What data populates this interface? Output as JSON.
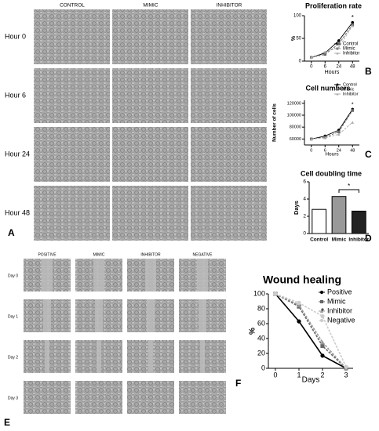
{
  "figure": {
    "A": {
      "columns": [
        "CONTROL",
        "MIMIC",
        "INHIBITOR"
      ],
      "rows": [
        "Hour 0",
        "Hour 6",
        "Hour 24",
        "Hour 48"
      ]
    },
    "E": {
      "columns": [
        "POSITIVE",
        "MIMIC",
        "INHIBITOR",
        "NEGATIVE"
      ],
      "rows": [
        "Day 0",
        "Day 1",
        "Day 2",
        "Day 3"
      ]
    },
    "labels": [
      "A",
      "B",
      "C",
      "D",
      "E",
      "F"
    ]
  },
  "chart_data": [
    {
      "type": "line",
      "title": "Proliferation rate",
      "x_label": "Hours",
      "y_label": "%",
      "categories": [
        "0",
        "6",
        "24",
        "48"
      ],
      "ylim": [
        0,
        100
      ],
      "yticks": [
        0,
        50,
        100
      ],
      "legend": "lower right",
      "annotation": "*",
      "series": [
        {
          "name": "Control",
          "color": "#000000",
          "marker": "circle",
          "values": [
            8,
            18,
            45,
            85
          ]
        },
        {
          "name": "Mimic",
          "color": "#666666",
          "marker": "square",
          "values": [
            8,
            15,
            38,
            80
          ]
        },
        {
          "name": "Inhibitor",
          "color": "#aaaaaa",
          "marker": "triangle",
          "values": [
            8,
            20,
            30,
            78
          ]
        }
      ]
    },
    {
      "type": "line",
      "title": "Cell numbers",
      "x_label": "Hours",
      "y_label": "Number of cells",
      "categories": [
        "0",
        "6",
        "24",
        "48"
      ],
      "ylim": [
        50000,
        125000
      ],
      "yticks": [
        60000,
        80000,
        100000,
        120000
      ],
      "legend": "upper right",
      "annotation": "*",
      "series": [
        {
          "name": "Control",
          "color": "#000000",
          "marker": "circle",
          "values": [
            60000,
            65000,
            75000,
            110000
          ]
        },
        {
          "name": "Mimic",
          "color": "#666666",
          "marker": "square",
          "values": [
            60000,
            63000,
            72000,
            108000
          ]
        },
        {
          "name": "Inhibitor",
          "color": "#aaaaaa",
          "marker": "triangle",
          "values": [
            60000,
            62000,
            68000,
            88000
          ]
        }
      ]
    },
    {
      "type": "bar",
      "title": "Cell doubling time",
      "y_label": "Days",
      "categories": [
        "Control",
        "Mimic",
        "Inhibitor"
      ],
      "values": [
        2.8,
        4.3,
        2.6
      ],
      "colors": [
        "#ffffff",
        "#999999",
        "#222222"
      ],
      "ylim": [
        0,
        6
      ],
      "yticks": [
        0,
        2,
        4,
        6
      ],
      "annotation": "*"
    },
    {
      "type": "line",
      "title": "Wound healing",
      "x_label": "Days",
      "y_label": "%",
      "x": [
        0,
        1,
        2,
        3
      ],
      "xlim": [
        -0.3,
        3.3
      ],
      "xticks": [
        0,
        1,
        2,
        3
      ],
      "ylim": [
        0,
        100
      ],
      "yticks": [
        0,
        20,
        40,
        60,
        80,
        100
      ],
      "legend": "upper right",
      "annotation": "*",
      "series": [
        {
          "name": "Positive",
          "color": "#000000",
          "marker": "circle",
          "values": [
            100,
            63,
            17,
            0
          ]
        },
        {
          "name": "Mimic",
          "color": "#666666",
          "marker": "square",
          "values": [
            100,
            83,
            30,
            0
          ]
        },
        {
          "name": "Inhibitor",
          "color": "#999999",
          "marker": "triangle",
          "values": [
            100,
            85,
            35,
            0
          ]
        },
        {
          "name": "Negative",
          "color": "#cccccc",
          "marker": "circle",
          "values": [
            100,
            88,
            70,
            2
          ]
        }
      ]
    }
  ]
}
